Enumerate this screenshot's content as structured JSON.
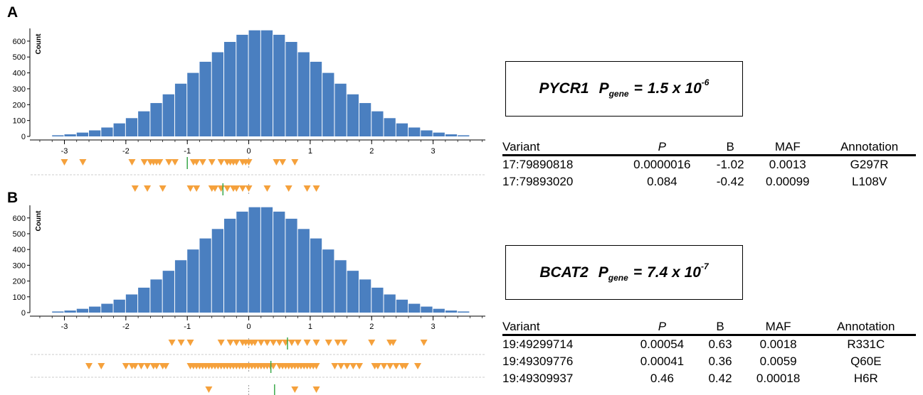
{
  "panels": [
    {
      "letter": "A",
      "gene": "PYCR1",
      "p_symbol": "P",
      "p_subscript": "gene",
      "equals": "=",
      "p_value_mantissa": "1.5 x 10",
      "p_value_exponent": "-6",
      "table": {
        "headers": [
          "Variant",
          "P",
          "B",
          "MAF",
          "Annotation"
        ],
        "rows": [
          [
            "17:79890818",
            "0.0000016",
            "-1.02",
            "0.0013",
            "G297R"
          ],
          [
            "17:79893020",
            "0.084",
            "-0.42",
            "0.00099",
            "L108V"
          ]
        ]
      }
    },
    {
      "letter": "B",
      "gene": "BCAT2",
      "p_symbol": "P",
      "p_subscript": "gene",
      "equals": "=",
      "p_value_mantissa": "7.4 x 10",
      "p_value_exponent": "-7",
      "table": {
        "headers": [
          "Variant",
          "P",
          "B",
          "MAF",
          "Annotation"
        ],
        "rows": [
          [
            "19:49299714",
            "0.00054",
            "0.63",
            "0.0018",
            "R331C"
          ],
          [
            "19:49309776",
            "0.00041",
            "0.36",
            "0.0059",
            "Q60E"
          ],
          [
            "19:49309937",
            "0.46",
            "0.42",
            "0.00018",
            "H6R"
          ]
        ]
      }
    }
  ],
  "colors": {
    "bar": "#4a7fc0",
    "marker": "#f5a13c",
    "mean_line": "#3aa84a",
    "zero_line": "#999999",
    "divider": "#cccccc"
  },
  "chart_data": [
    {
      "type": "bar",
      "panel": "A",
      "ylabel": "Count",
      "xlim": [
        -3.55,
        3.85
      ],
      "ylim": [
        0,
        680
      ],
      "xticks": [
        "-3",
        "-2",
        "-1",
        "0",
        "1",
        "2",
        "3"
      ],
      "yticks": [
        "0",
        "100",
        "200",
        "300",
        "400",
        "500",
        "600"
      ],
      "bin_width": 0.2,
      "bin_start": -3.2,
      "values": [
        7,
        13,
        24,
        38,
        56,
        82,
        115,
        158,
        210,
        265,
        332,
        400,
        470,
        530,
        595,
        640,
        668,
        668,
        640,
        595,
        530,
        470,
        400,
        332,
        265,
        210,
        158,
        115,
        82,
        56,
        38,
        24,
        13,
        7
      ],
      "marker_rows": [
        {
          "x": [
            -3.0,
            -2.7,
            -1.9,
            -1.7,
            -1.6,
            -1.55,
            -1.5,
            -1.45,
            -1.3,
            -1.2,
            -0.9,
            -0.85,
            -0.75,
            -0.6,
            -0.45,
            -0.35,
            -0.3,
            -0.25,
            -0.2,
            -0.1,
            -0.05,
            0.0,
            0.45,
            0.55,
            0.75
          ],
          "mean": -1.0
        },
        {
          "x": [
            -1.85,
            -1.65,
            -1.4,
            -0.95,
            -0.85,
            -0.6,
            -0.55,
            -0.45,
            -0.35,
            -0.25,
            -0.2,
            -0.1,
            0.0,
            0.3,
            0.65,
            0.95,
            1.1
          ],
          "mean": -0.42
        }
      ]
    },
    {
      "type": "bar",
      "panel": "B",
      "ylabel": "Count",
      "xlim": [
        -3.55,
        3.85
      ],
      "ylim": [
        0,
        680
      ],
      "xticks": [
        "-3",
        "-2",
        "-1",
        "0",
        "1",
        "2",
        "3"
      ],
      "yticks": [
        "0",
        "100",
        "200",
        "300",
        "400",
        "500",
        "600"
      ],
      "bin_width": 0.2,
      "bin_start": -3.2,
      "values": [
        7,
        13,
        24,
        38,
        56,
        82,
        115,
        158,
        210,
        265,
        332,
        400,
        470,
        530,
        595,
        640,
        668,
        668,
        640,
        595,
        530,
        470,
        400,
        332,
        265,
        210,
        158,
        115,
        82,
        56,
        38,
        24,
        13,
        7
      ],
      "marker_rows": [
        {
          "x": [
            -1.25,
            -1.1,
            -0.95,
            -0.45,
            -0.3,
            -0.2,
            -0.1,
            -0.05,
            0.0,
            0.05,
            0.1,
            0.2,
            0.3,
            0.4,
            0.5,
            0.6,
            0.7,
            0.8,
            0.95,
            1.1,
            1.3,
            1.45,
            1.55,
            2.0,
            2.3,
            2.35,
            2.85
          ],
          "mean": 0.63
        },
        {
          "x": [
            -2.6,
            -2.4,
            -2.0,
            -1.9,
            -1.85,
            -1.75,
            -1.65,
            -1.55,
            -1.5,
            -1.4,
            -1.35,
            -0.95,
            -0.9,
            -0.85,
            -0.8,
            -0.75,
            -0.7,
            -0.65,
            -0.6,
            -0.55,
            -0.5,
            -0.45,
            -0.4,
            -0.35,
            -0.3,
            -0.25,
            -0.2,
            -0.15,
            -0.1,
            -0.05,
            0.0,
            0.05,
            0.1,
            0.15,
            0.2,
            0.25,
            0.3,
            0.35,
            0.4,
            0.5,
            0.55,
            0.6,
            0.65,
            0.7,
            0.75,
            0.8,
            0.85,
            0.9,
            0.95,
            1.0,
            1.05,
            1.1,
            1.4,
            1.5,
            1.6,
            1.7,
            1.8,
            2.05,
            2.1,
            2.2,
            2.3,
            2.4,
            2.5,
            2.55,
            2.75
          ],
          "mean": 0.36
        },
        {
          "x": [
            -0.65,
            0.75,
            1.1
          ],
          "mean": 0.42
        }
      ]
    }
  ]
}
